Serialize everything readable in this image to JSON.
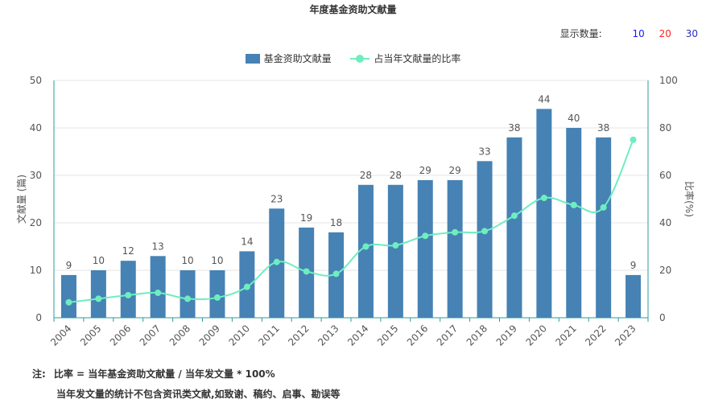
{
  "title": "年度基金资助文献量",
  "count_selector": {
    "label": "显示数量:",
    "options": [
      {
        "label": "10",
        "color": "#1a1aff"
      },
      {
        "label": "20",
        "color": "#ff2222"
      },
      {
        "label": "30",
        "color": "#2d2dbd"
      }
    ]
  },
  "legend": {
    "bar_label": "基金资助文献量",
    "line_label": "占当年文献量的比率"
  },
  "colors": {
    "bar": "#4682b4",
    "line": "#6eeec0",
    "axis": "#2a9d9d",
    "grid": "#e6e6e6"
  },
  "notes": {
    "prefix": "注:",
    "line1": "比率 = 当年基金资助文献量 / 当年发文量 * 100%",
    "line2": "当年发文量的统计不包含资讯类文献,如致谢、稿约、启事、勘误等"
  },
  "chart_data": {
    "type": "bar",
    "title": "年度基金资助文献量",
    "categories": [
      "2004",
      "2005",
      "2006",
      "2007",
      "2008",
      "2009",
      "2010",
      "2011",
      "2012",
      "2013",
      "2014",
      "2015",
      "2016",
      "2017",
      "2018",
      "2019",
      "2020",
      "2021",
      "2022",
      "2023"
    ],
    "series": [
      {
        "name": "基金资助文献量",
        "type": "bar",
        "axis": "left",
        "values": [
          9,
          10,
          12,
          13,
          10,
          10,
          14,
          23,
          19,
          18,
          28,
          28,
          29,
          29,
          33,
          38,
          44,
          40,
          38,
          9
        ]
      },
      {
        "name": "占当年文献量的比率",
        "type": "line",
        "axis": "right",
        "values": [
          6.5,
          8,
          9.5,
          10.5,
          8,
          8.5,
          13,
          23.5,
          19.5,
          18.5,
          30,
          30.5,
          34.5,
          36,
          36.5,
          43,
          50.5,
          47.5,
          46.5,
          75
        ]
      }
    ],
    "ylabel_left": "文献量 (篇)",
    "ylabel_right": "比率(%)",
    "ylim_left": [
      0,
      50
    ],
    "ylim_right": [
      0,
      100
    ],
    "yticks_left": [
      0,
      10,
      20,
      30,
      40,
      50
    ],
    "yticks_right": [
      0,
      20,
      40,
      60,
      80,
      100
    ],
    "grid": true,
    "legend_position": "top-center"
  }
}
